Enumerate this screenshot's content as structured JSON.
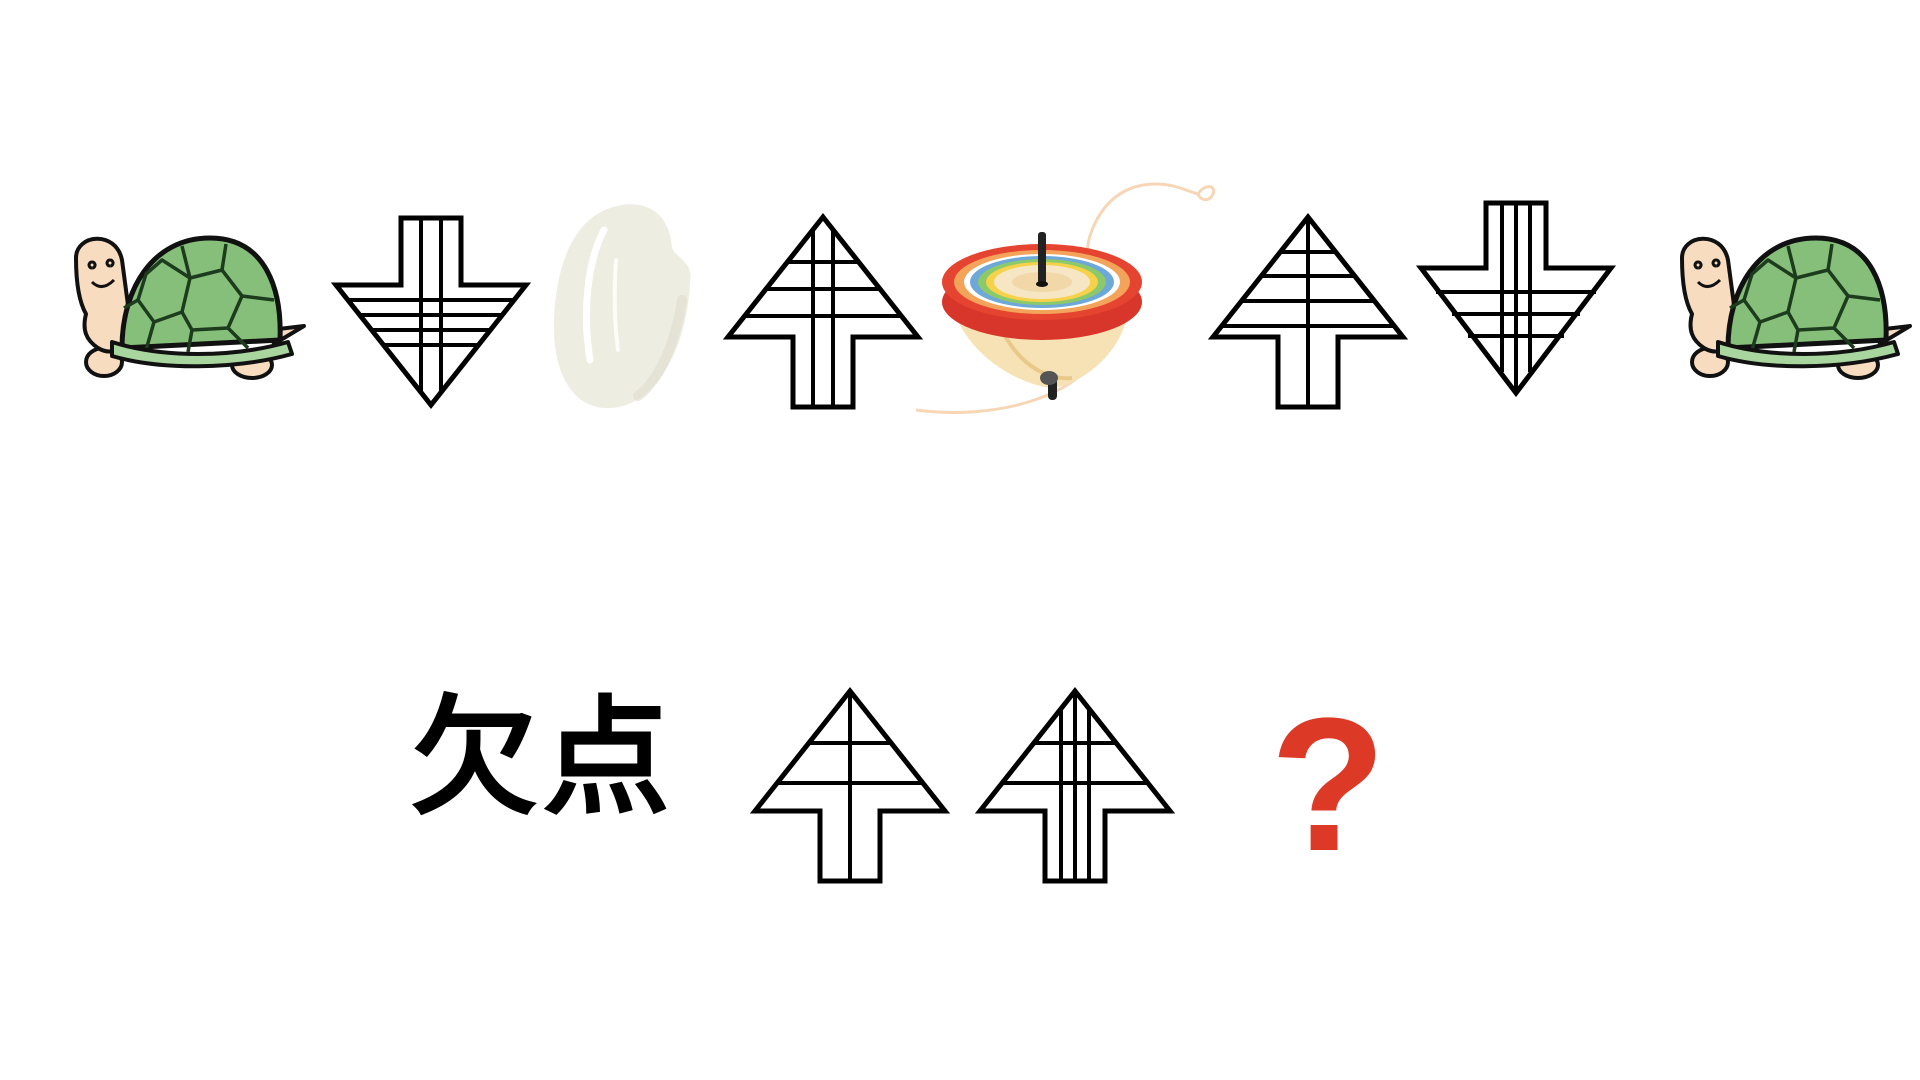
{
  "puzzle": {
    "sequence": [
      {
        "kind": "icon",
        "icon": "turtle-icon"
      },
      {
        "kind": "arrow",
        "direction": "down",
        "vertical_lines": 2,
        "horizontal_lines": 4
      },
      {
        "kind": "icon",
        "icon": "rice-grain-icon"
      },
      {
        "kind": "arrow",
        "direction": "up",
        "vertical_lines": 2,
        "horizontal_lines": 3
      },
      {
        "kind": "icon",
        "icon": "spinning-top-icon"
      },
      {
        "kind": "arrow",
        "direction": "up",
        "vertical_lines": 1,
        "horizontal_lines": 4
      },
      {
        "kind": "arrow",
        "direction": "down",
        "vertical_lines": 3,
        "horizontal_lines": 3
      },
      {
        "kind": "icon",
        "icon": "turtle-icon"
      }
    ],
    "question": {
      "label": "欠点",
      "answer_symbol": "?",
      "arrows": [
        {
          "direction": "up",
          "vertical_lines": 1,
          "horizontal_lines": 2
        },
        {
          "direction": "up",
          "vertical_lines": 3,
          "horizontal_lines": 2
        }
      ]
    }
  },
  "colors": {
    "stroke": "#000000",
    "question_mark": "#dc3a26",
    "turtle_shell": "#86bf7a",
    "turtle_skin": "#f7dcc0",
    "rice": "#eeede2",
    "top_red": "#e54430"
  }
}
